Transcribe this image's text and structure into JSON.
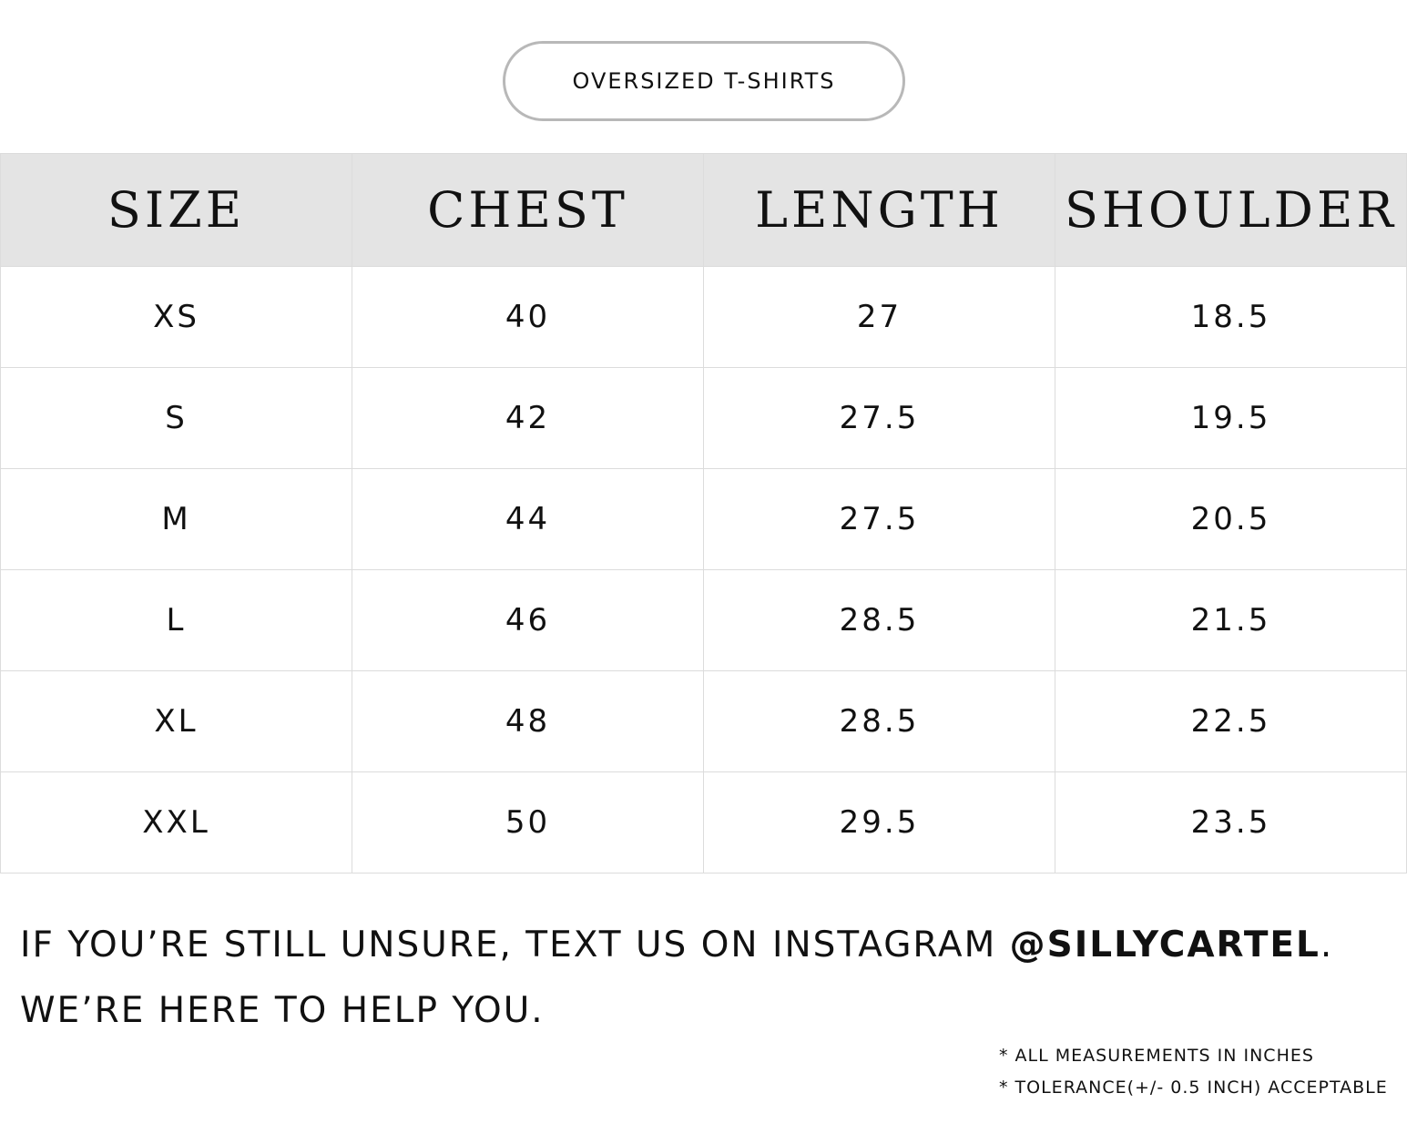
{
  "title": "OVERSIZED T-SHIRTS",
  "table": {
    "headers": [
      "SIZE",
      "CHEST",
      "LENGTH",
      "SHOULDER"
    ],
    "rows": [
      [
        "XS",
        "40",
        "27",
        "18.5"
      ],
      [
        "S",
        "42",
        "27.5",
        "19.5"
      ],
      [
        "M",
        "44",
        "27.5",
        "20.5"
      ],
      [
        "L",
        "46",
        "28.5",
        "21.5"
      ],
      [
        "XL",
        "48",
        "28.5",
        "22.5"
      ],
      [
        "XXL",
        "50",
        "29.5",
        "23.5"
      ]
    ]
  },
  "message": {
    "line1_prefix": "IF YOU’RE STILL UNSURE, TEXT US ON INSTAGRAM ",
    "handle": "@SILLYCARTEL",
    "line1_suffix": ".",
    "line2": "WE’RE HERE TO HELP YOU."
  },
  "notes": [
    "* ALL MEASUREMENTS IN INCHES",
    "* TOLERANCE(+/- 0.5 INCH) ACCEPTABLE"
  ],
  "colors": {
    "header_bg": "#e4e4e4",
    "border": "#dcdcdc",
    "pill_border": "#b8b8b8"
  }
}
